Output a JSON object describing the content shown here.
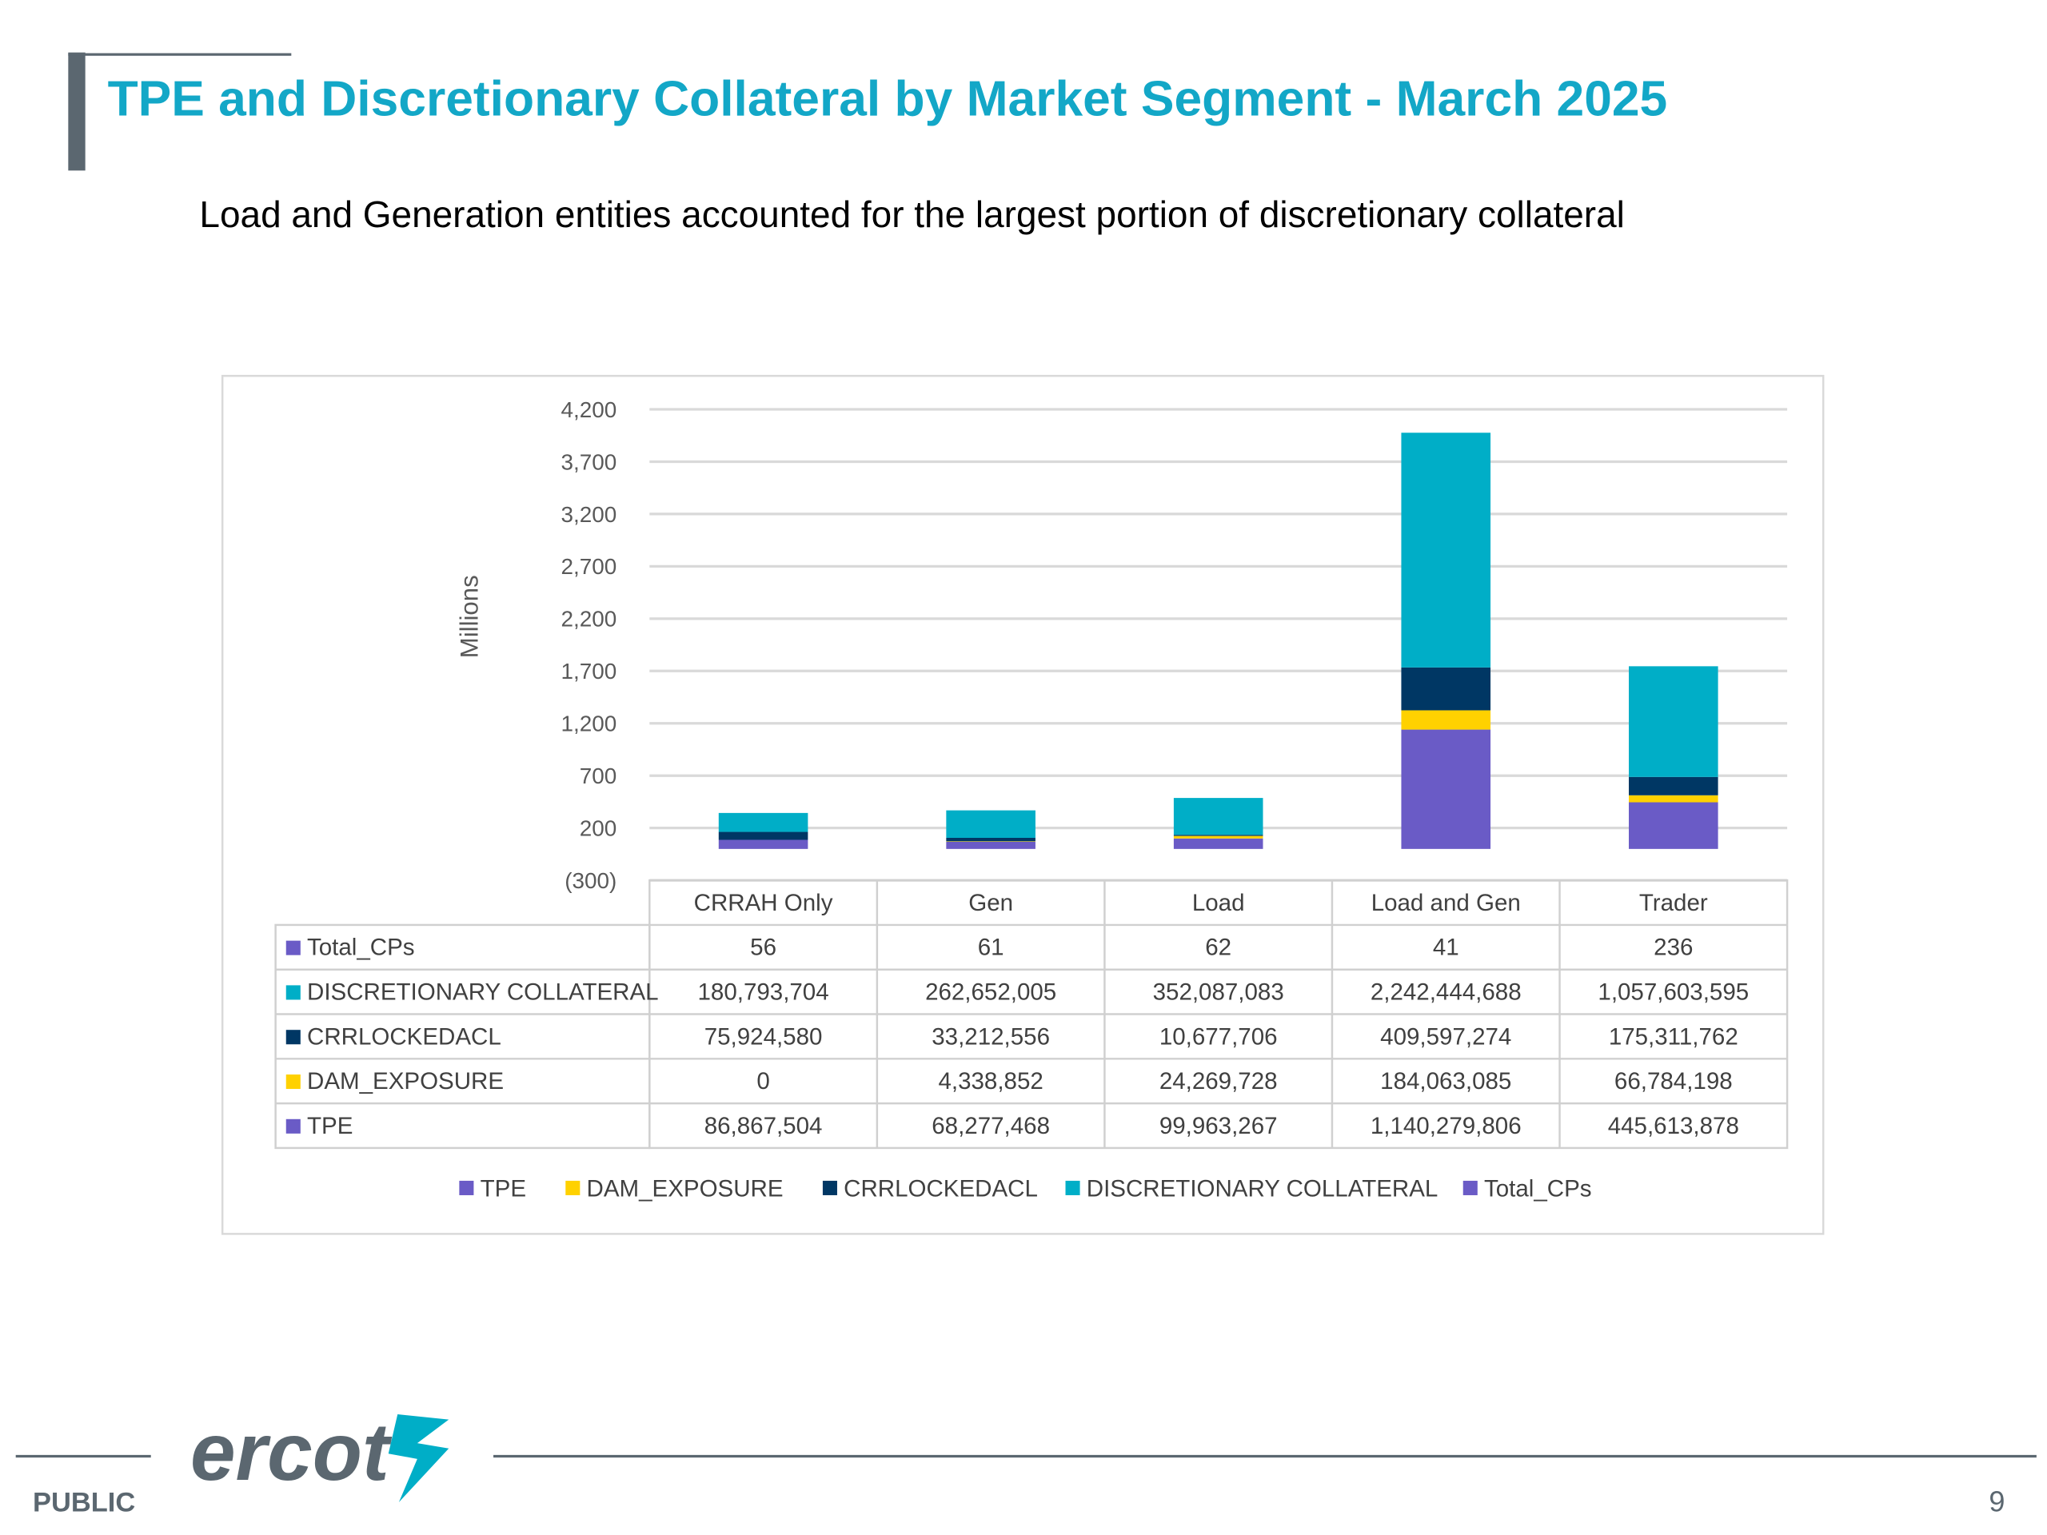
{
  "slide": {
    "title": "TPE and Discretionary Collateral by Market Segment - March 2025",
    "subtitle": "Load and Generation entities accounted for the largest portion of discretionary collateral"
  },
  "chart_data": {
    "type": "bar",
    "stacked": true,
    "ylabel": "Millions",
    "categories": [
      "CRRAH Only",
      "Gen",
      "Load",
      "Load and Gen",
      "Trader"
    ],
    "series": [
      {
        "name": "TPE",
        "color": "#6a5bc6",
        "values": [
          86867504,
          68277468,
          99963267,
          1140279806,
          445613878
        ],
        "value_labels": [
          "86,867,504",
          "68,277,468",
          "99,963,267",
          "1,140,279,806",
          "445,613,878"
        ]
      },
      {
        "name": "DAM_EXPOSURE",
        "color": "#ffd100",
        "values": [
          0,
          4338852,
          24269728,
          184063085,
          66784198
        ],
        "value_labels": [
          "0",
          "4,338,852",
          "24,269,728",
          "184,063,085",
          "66,784,198"
        ]
      },
      {
        "name": "CRRLOCKEDACL",
        "color": "#003764",
        "values": [
          75924580,
          33212556,
          10677706,
          409597274,
          175311762
        ],
        "value_labels": [
          "75,924,580",
          "33,212,556",
          "10,677,706",
          "409,597,274",
          "175,311,762"
        ]
      },
      {
        "name": "DISCRETIONARY COLLATERAL",
        "color": "#00aec7",
        "values": [
          180793704,
          262652005,
          352087083,
          2242444688,
          1057603595
        ],
        "value_labels": [
          "180,793,704",
          "262,652,005",
          "352,087,083",
          "2,242,444,688",
          "1,057,603,595"
        ]
      },
      {
        "name": "Total_CPs",
        "color": "#6a5bc6",
        "values": [
          56,
          61,
          62,
          41,
          236
        ]
      }
    ],
    "ylim": [
      -300000000,
      4200000000
    ],
    "yticks": [
      {
        "value": -300000000,
        "label": "(300)"
      },
      {
        "value": 200000000,
        "label": "200"
      },
      {
        "value": 700000000,
        "label": "700"
      },
      {
        "value": 1200000000,
        "label": "1,200"
      },
      {
        "value": 1700000000,
        "label": "1,700"
      },
      {
        "value": 2200000000,
        "label": "2,200"
      },
      {
        "value": 2700000000,
        "label": "2,700"
      },
      {
        "value": 3200000000,
        "label": "3,200"
      },
      {
        "value": 3700000000,
        "label": "3,700"
      },
      {
        "value": 4200000000,
        "label": "4,200"
      }
    ],
    "grid": true,
    "legend": "bottom",
    "data_table": true
  },
  "footer": {
    "logo": "ercot",
    "classification": "PUBLIC",
    "page": "9"
  }
}
